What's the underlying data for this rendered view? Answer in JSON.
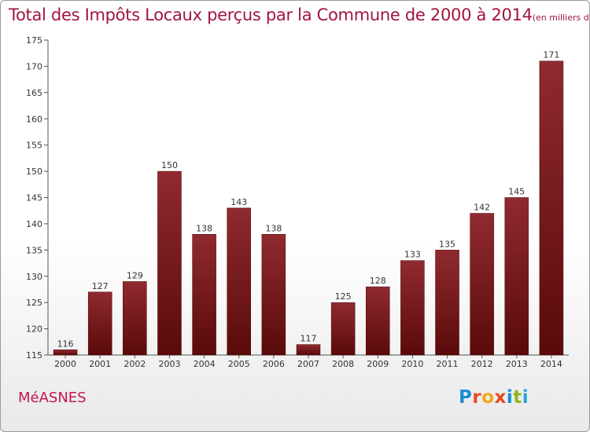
{
  "title": "Total des Impôts Locaux perçus par la Commune de 2000 à 2014",
  "unit_note": "(en milliers d'€)",
  "commune": "MéASNES",
  "logo": {
    "text": "Proxiti",
    "letters": [
      "P",
      "r",
      "o",
      "x",
      "i",
      "t",
      "i"
    ],
    "colors": [
      "#1f8ad6",
      "#e8491d",
      "#f2a516",
      "#e8491d",
      "#1f8ad6",
      "#8ab71c",
      "#2aa3d9"
    ]
  },
  "colors": {
    "title": "#a1153c",
    "bar_top": "#8f2a30",
    "bar_bottom": "#5a0a0a"
  },
  "chart_data": {
    "type": "bar",
    "title": "Total des Impôts Locaux perçus par la Commune de 2000 à 2014",
    "categories": [
      "2000",
      "2001",
      "2002",
      "2003",
      "2004",
      "2005",
      "2006",
      "2007",
      "2008",
      "2009",
      "2010",
      "2011",
      "2012",
      "2013",
      "2014"
    ],
    "values": [
      116,
      127,
      129,
      150,
      138,
      143,
      138,
      117,
      125,
      128,
      133,
      135,
      142,
      145,
      171
    ],
    "ylim": [
      115,
      175
    ],
    "yticks": [
      115,
      120,
      125,
      130,
      135,
      140,
      145,
      150,
      155,
      160,
      165,
      170,
      175
    ],
    "grid": false
  }
}
